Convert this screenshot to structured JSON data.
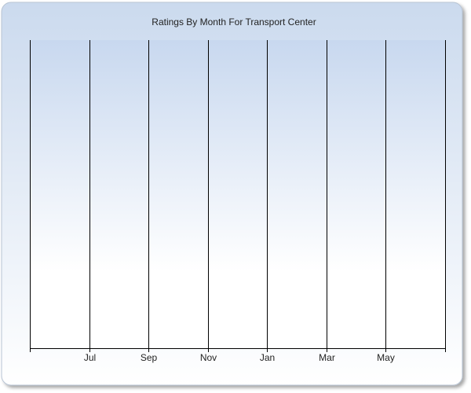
{
  "chart_data": {
    "type": "bar",
    "title": "Ratings By Month For Transport Center",
    "categories": [
      null,
      "Jul",
      "Sep",
      "Nov",
      "Jan",
      "Mar",
      "May",
      null
    ]
  }
}
